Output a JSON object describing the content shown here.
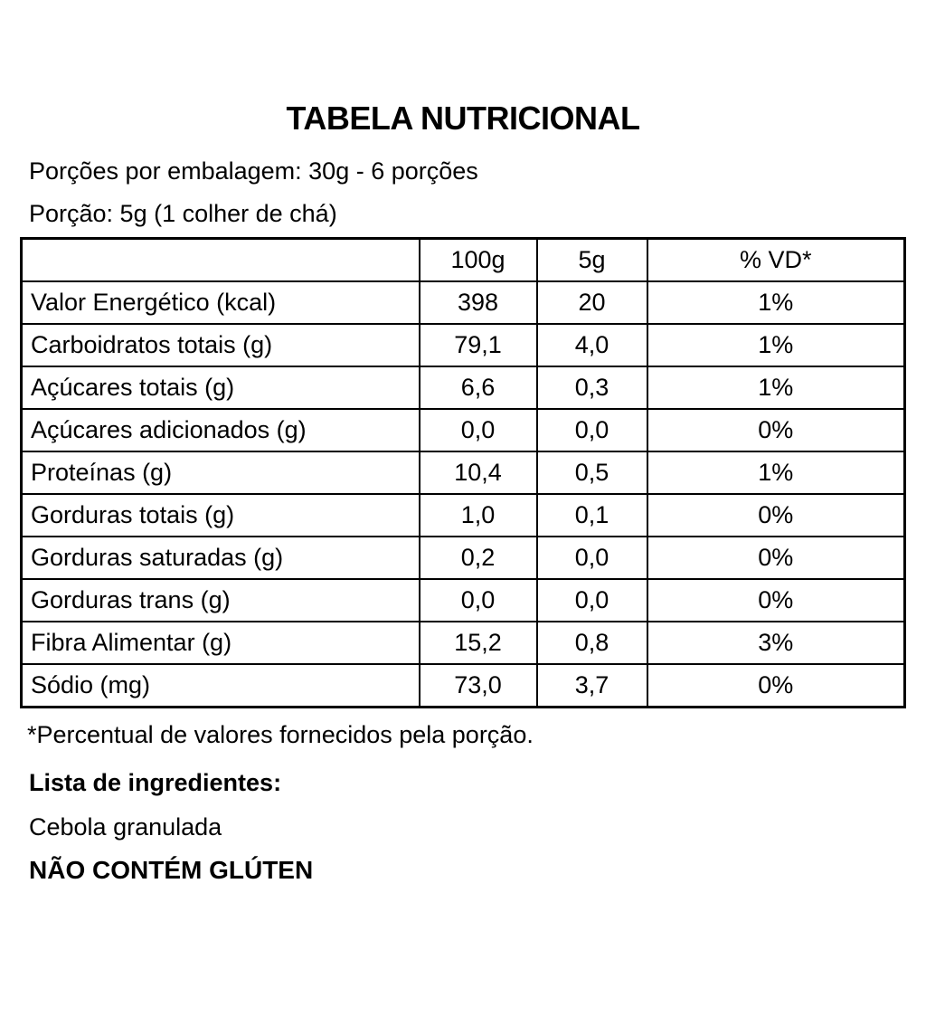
{
  "title": "TABELA NUTRICIONAL",
  "serving_info": {
    "servings_per_package": "Porções por embalagem: 30g - 6 porções",
    "serving_size": "Porção: 5g (1 colher de chá)"
  },
  "table": {
    "columns": [
      "",
      "100g",
      "5g",
      "% VD*"
    ],
    "rows": [
      {
        "label": "Valor Energético (kcal)",
        "per100g": "398",
        "per5g": "20",
        "vd": "1%"
      },
      {
        "label": "Carboidratos totais (g)",
        "per100g": "79,1",
        "per5g": "4,0",
        "vd": "1%"
      },
      {
        "label": "Açúcares totais (g)",
        "per100g": "6,6",
        "per5g": "0,3",
        "vd": "1%"
      },
      {
        "label": "Açúcares adicionados (g)",
        "per100g": "0,0",
        "per5g": "0,0",
        "vd": "0%"
      },
      {
        "label": "Proteínas (g)",
        "per100g": "10,4",
        "per5g": "0,5",
        "vd": "1%"
      },
      {
        "label": "Gorduras totais (g)",
        "per100g": "1,0",
        "per5g": "0,1",
        "vd": "0%"
      },
      {
        "label": "Gorduras saturadas (g)",
        "per100g": "0,2",
        "per5g": "0,0",
        "vd": "0%"
      },
      {
        "label": "Gorduras trans (g)",
        "per100g": "0,0",
        "per5g": "0,0",
        "vd": "0%"
      },
      {
        "label": "Fibra Alimentar (g)",
        "per100g": "15,2",
        "per5g": "0,8",
        "vd": "3%"
      },
      {
        "label": "Sódio (mg)",
        "per100g": "73,0",
        "per5g": "3,7",
        "vd": "0%"
      }
    ]
  },
  "footnote": "*Percentual de valores fornecidos pela porção.",
  "ingredients": {
    "heading": "Lista de ingredientes:",
    "list": "Cebola granulada"
  },
  "gluten_notice": "NÃO CONTÉM GLÚTEN",
  "colors": {
    "background": "#ffffff",
    "text": "#000000",
    "table_border": "#000000"
  }
}
